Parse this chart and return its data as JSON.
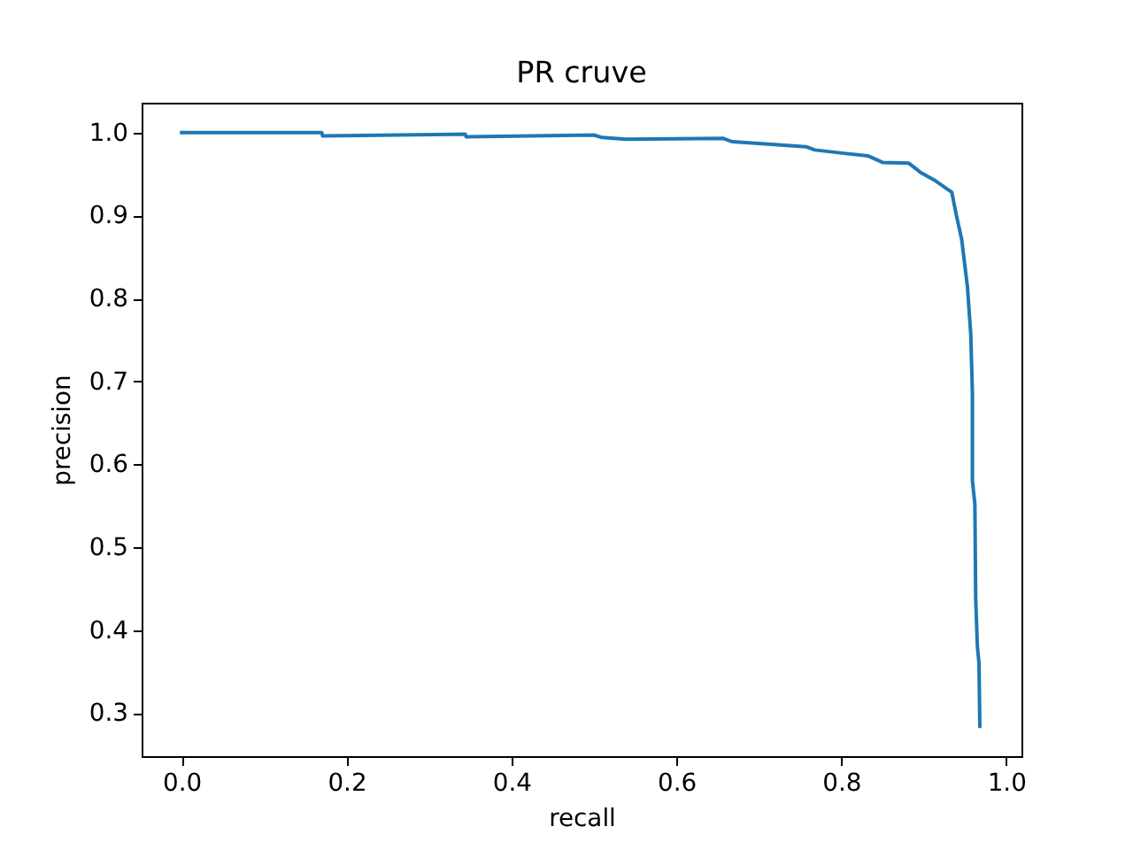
{
  "chart_data": {
    "type": "line",
    "title": "PR cruve",
    "xlabel": "recall",
    "ylabel": "precision",
    "x": [
      0,
      0.17,
      0.171,
      0.344,
      0.345,
      0.5,
      0.51,
      0.539,
      0.657,
      0.668,
      0.711,
      0.757,
      0.768,
      0.803,
      0.832,
      0.85,
      0.882,
      0.896,
      0.914,
      0.934,
      0.939,
      0.946,
      0.953,
      0.957,
      0.959,
      0.959,
      0.962,
      0.963,
      0.965,
      0.967,
      0.968
    ],
    "series": [
      {
        "color": "#1f77b4",
        "values": [
          1.0,
          1.0,
          0.996,
          0.998,
          0.995,
          0.997,
          0.994,
          0.992,
          0.993,
          0.989,
          0.986,
          0.983,
          0.979,
          0.975,
          0.972,
          0.964,
          0.963,
          0.952,
          0.942,
          0.928,
          0.903,
          0.871,
          0.814,
          0.757,
          0.686,
          0.58,
          0.552,
          0.438,
          0.381,
          0.36,
          0.284
        ]
      }
    ],
    "xlim": [
      -0.0485,
      1.0185
    ],
    "ylim": [
      0.248,
      1.036
    ],
    "xticks": [
      {
        "value": 0,
        "label": "0.0"
      },
      0.2,
      0.4,
      0.6,
      0.8,
      {
        "value": 1,
        "label": "1.0"
      }
    ],
    "yticks": [
      0.3,
      0.4,
      0.5,
      0.6,
      0.7,
      0.8,
      0.9,
      {
        "value": 1,
        "label": "1.0"
      }
    ],
    "grid": false,
    "legend": false
  }
}
